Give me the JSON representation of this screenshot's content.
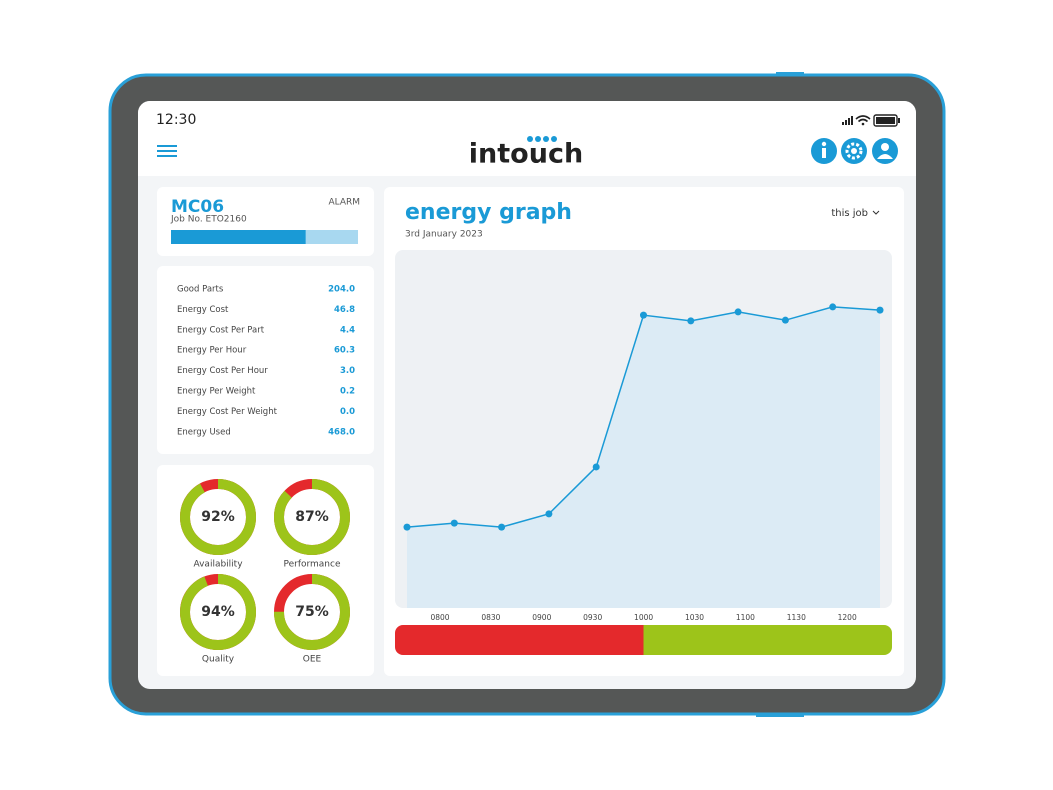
{
  "status": {
    "time": "12:30"
  },
  "header": {
    "logo": "intouch"
  },
  "machine": {
    "name": "MC06",
    "job": "Job No. ETO2160",
    "state": "ALARM",
    "progress": 72
  },
  "metrics": [
    {
      "label": "Good Parts",
      "value": "204.0"
    },
    {
      "label": "Energy Cost",
      "value": "46.8"
    },
    {
      "label": "Energy Cost Per Part",
      "value": "4.4"
    },
    {
      "label": "Energy Per Hour",
      "value": "60.3"
    },
    {
      "label": "Energy Cost Per Hour",
      "value": "3.0"
    },
    {
      "label": "Energy Per Weight",
      "value": "0.2"
    },
    {
      "label": "Energy Cost Per Weight",
      "value": "0.0"
    },
    {
      "label": "Energy Used",
      "value": "468.0"
    }
  ],
  "gauges": [
    {
      "name": "Availability",
      "value": 92,
      "value_label": "92%"
    },
    {
      "name": "Performance",
      "value": 87,
      "value_label": "87%"
    },
    {
      "name": "Quality",
      "value": 94,
      "value_label": "94%"
    },
    {
      "name": "OEE",
      "value": 75,
      "value_label": "75%"
    }
  ],
  "chart_data": {
    "type": "area",
    "title": "energy graph",
    "subtitle": "3rd January 2023",
    "filter": "this job",
    "color": "#1a9ad6",
    "fill": "#dcebf5",
    "values": [
      22.6,
      23.7,
      22.6,
      26.3,
      39.4,
      81.8,
      80.2,
      82.7,
      80.4,
      84.1,
      83.2
    ],
    "ylim": [
      0,
      100
    ],
    "tick_labels": [
      "0800",
      "0830",
      "0900",
      "0930",
      "1000",
      "1030",
      "1100",
      "1130",
      "1200"
    ],
    "status_bar": [
      {
        "color": "#e4292c",
        "value": 50
      },
      {
        "color": "#9dc41a",
        "value": 50
      }
    ]
  }
}
